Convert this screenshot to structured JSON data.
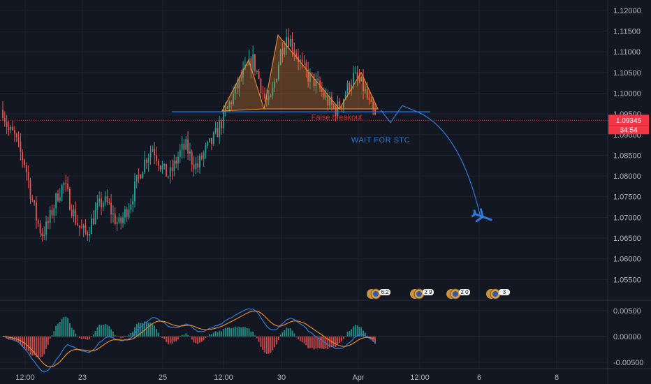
{
  "chart_data": {
    "type": "candlestick",
    "instrument_quote_precision": 5,
    "price_axis": {
      "range": [
        1.05,
        1.1225
      ],
      "ticks": [
        "1.12000",
        "1.11500",
        "1.11000",
        "1.10500",
        "1.10000",
        "1.09500",
        "1.09000",
        "1.08500",
        "1.08000",
        "1.07500",
        "1.07000",
        "1.06500",
        "1.06000",
        "1.05500"
      ]
    },
    "oscillator_axis": {
      "range": [
        -0.0062,
        0.007
      ],
      "ticks": [
        "0.00500",
        "0.00000",
        "-0.00500"
      ]
    },
    "time_axis": {
      "ticks": [
        "12:00",
        "23",
        "25",
        "12:00",
        "30",
        "Apr",
        "12:00",
        "6",
        "8"
      ]
    },
    "last_price": {
      "value": 1.09345,
      "label": "1.09345",
      "countdown": "34:54",
      "color": "#f23645"
    },
    "neckline_level": 1.0955,
    "annotations": {
      "false_breakout": "False breakout",
      "wait": "WAIT FOR STC"
    },
    "head_and_shoulders": {
      "left_shoulder": [
        1.0957,
        1.108,
        1.0962
      ],
      "head": [
        1.114,
        1.0962
      ],
      "right_shoulder": [
        1.105,
        1.0962
      ]
    },
    "projection_path": [
      1.096,
      1.0929,
      1.097,
      1.0953,
      1.07
    ],
    "events": [
      {
        "label": "6:2"
      },
      {
        "label": "2 9"
      },
      {
        "label": "2 0"
      },
      {
        "label": "3"
      }
    ],
    "price_path": [
      1.096,
      1.091,
      1.09,
      1.086,
      1.083,
      1.076,
      1.07,
      1.066,
      1.068,
      1.072,
      1.076,
      1.078,
      1.074,
      1.07,
      1.067,
      1.066,
      1.069,
      1.072,
      1.074,
      1.073,
      1.07,
      1.068,
      1.071,
      1.074,
      1.078,
      1.082,
      1.085,
      1.087,
      1.084,
      1.081,
      1.08,
      1.083,
      1.086,
      1.087,
      1.084,
      1.082,
      1.085,
      1.087,
      1.089,
      1.092,
      1.095,
      1.098,
      1.101,
      1.104,
      1.106,
      1.108,
      1.104,
      1.099,
      1.097,
      1.103,
      1.11,
      1.114,
      1.112,
      1.109,
      1.106,
      1.104,
      1.103,
      1.101,
      1.099,
      1.097,
      1.096,
      1.098,
      1.101,
      1.104,
      1.103,
      1.101,
      1.097,
      1.094
    ],
    "colors": {
      "up": "#26a69a",
      "down": "#ef5350",
      "pattern": "#e8862a",
      "macd": "#2f7bd8",
      "signal": "#e8862a",
      "annotation_blue": "#2f7bd8"
    }
  }
}
